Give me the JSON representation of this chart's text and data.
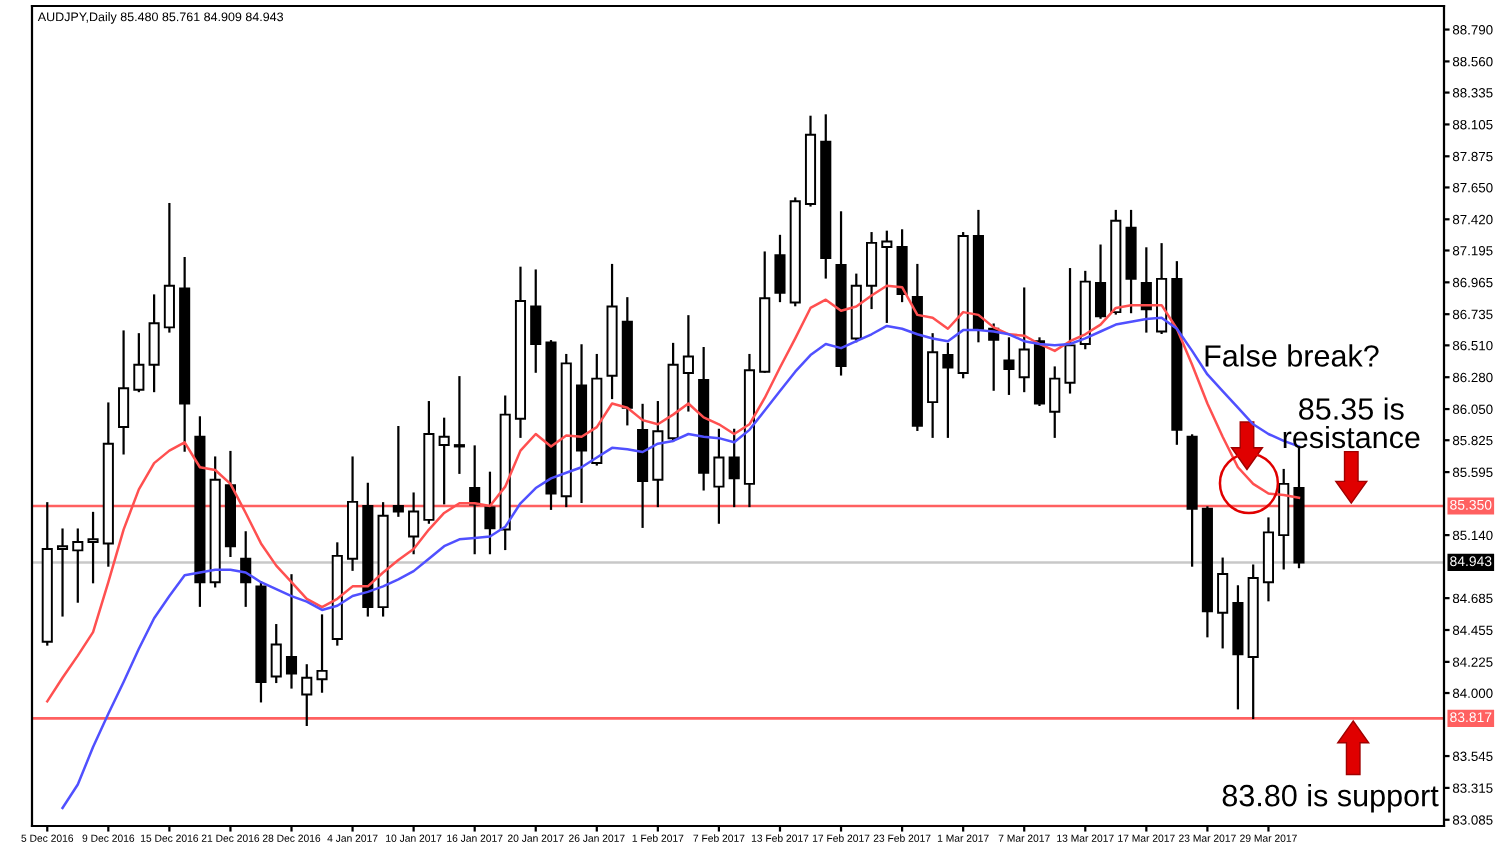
{
  "chart_data": {
    "type": "candlestick",
    "categories": [
      "5 Dec 2016",
      null,
      null,
      null,
      "9 Dec 2016",
      null,
      null,
      null,
      "15 Dec 2016",
      null,
      null,
      null,
      "21 Dec 2016",
      null,
      null,
      null,
      "28 Dec 2016",
      null,
      null,
      null,
      "4 Jan 2017",
      null,
      null,
      null,
      "10 Jan 2017",
      null,
      null,
      null,
      "16 Jan 2017",
      null,
      null,
      null,
      "20 Jan 2017",
      null,
      null,
      null,
      "26 Jan 2017",
      null,
      null,
      null,
      "1 Feb 2017",
      null,
      null,
      null,
      "7 Feb 2017",
      null,
      null,
      null,
      "13 Feb 2017",
      null,
      null,
      null,
      "17 Feb 2017",
      null,
      null,
      null,
      "23 Feb 2017",
      null,
      null,
      null,
      "1 Mar 2017",
      null,
      null,
      null,
      "7 Mar 2017",
      null,
      null,
      null,
      "13 Mar 2017",
      null,
      null,
      null,
      "17 Mar 2017",
      null,
      null,
      null,
      "23 Mar 2017",
      null,
      null,
      null,
      "29 Mar 2017",
      null,
      null
    ],
    "ohlc": [
      [
        84.37,
        85.37,
        84.35,
        85.04
      ],
      [
        85.04,
        85.18,
        84.56,
        85.06
      ],
      [
        85.03,
        85.18,
        84.66,
        85.09
      ],
      [
        85.09,
        85.3,
        84.8,
        85.11
      ],
      [
        85.08,
        86.09,
        84.92,
        85.8
      ],
      [
        85.92,
        86.61,
        85.73,
        86.2
      ],
      [
        86.19,
        86.59,
        86.18,
        86.37
      ],
      [
        86.37,
        86.87,
        86.18,
        86.67
      ],
      [
        86.64,
        87.53,
        86.61,
        86.94
      ],
      [
        86.92,
        87.14,
        85.75,
        86.09
      ],
      [
        85.85,
        85.99,
        84.63,
        84.8
      ],
      [
        84.8,
        85.7,
        84.77,
        85.54
      ],
      [
        85.5,
        85.74,
        84.99,
        85.06
      ],
      [
        84.97,
        85.16,
        84.63,
        84.8
      ],
      [
        84.77,
        84.8,
        83.94,
        84.08
      ],
      [
        84.12,
        84.49,
        84.08,
        84.35
      ],
      [
        84.26,
        84.85,
        84.04,
        84.14
      ],
      [
        83.99,
        84.2,
        83.77,
        84.11
      ],
      [
        84.1,
        84.56,
        84.01,
        84.16
      ],
      [
        84.39,
        85.08,
        84.35,
        84.99
      ],
      [
        84.97,
        85.7,
        84.89,
        85.38
      ],
      [
        85.35,
        85.51,
        84.56,
        84.62
      ],
      [
        84.62,
        85.37,
        84.56,
        85.28
      ],
      [
        85.35,
        85.92,
        85.28,
        85.31
      ],
      [
        85.13,
        85.44,
        85.01,
        85.31
      ],
      [
        85.25,
        86.1,
        85.23,
        85.87
      ],
      [
        85.79,
        85.98,
        85.37,
        85.85
      ],
      [
        85.79,
        86.28,
        85.59,
        85.78
      ],
      [
        85.48,
        85.78,
        85.01,
        85.36
      ],
      [
        85.34,
        85.59,
        85.01,
        85.19
      ],
      [
        85.18,
        86.14,
        85.04,
        86.01
      ],
      [
        85.98,
        87.07,
        85.85,
        86.83
      ],
      [
        86.79,
        87.05,
        86.32,
        86.52
      ],
      [
        86.53,
        86.54,
        85.33,
        85.44
      ],
      [
        85.42,
        86.44,
        85.35,
        86.38
      ],
      [
        86.22,
        86.51,
        85.38,
        85.75
      ],
      [
        85.66,
        86.44,
        85.65,
        86.27
      ],
      [
        86.29,
        87.09,
        86.13,
        86.79
      ],
      [
        86.68,
        86.85,
        85.94,
        86.06
      ],
      [
        85.9,
        86.08,
        85.2,
        85.53
      ],
      [
        85.54,
        86.1,
        85.35,
        85.89
      ],
      [
        85.84,
        86.52,
        85.82,
        86.37
      ],
      [
        86.31,
        86.72,
        86.04,
        86.43
      ],
      [
        86.26,
        86.49,
        85.47,
        85.59
      ],
      [
        85.49,
        85.9,
        85.23,
        85.7
      ],
      [
        85.7,
        85.9,
        85.35,
        85.55
      ],
      [
        85.51,
        86.44,
        85.35,
        86.33
      ],
      [
        86.32,
        87.18,
        86.32,
        86.85
      ],
      [
        87.16,
        87.3,
        86.83,
        86.89
      ],
      [
        86.82,
        87.57,
        86.8,
        87.55
      ],
      [
        87.53,
        88.16,
        87.52,
        88.03
      ],
      [
        87.98,
        88.17,
        87.0,
        87.14
      ],
      [
        87.09,
        87.47,
        86.3,
        86.36
      ],
      [
        86.56,
        87.02,
        86.54,
        86.94
      ],
      [
        86.94,
        87.32,
        86.78,
        87.25
      ],
      [
        87.22,
        87.33,
        86.68,
        87.26
      ],
      [
        87.22,
        87.34,
        86.83,
        86.88
      ],
      [
        86.86,
        87.09,
        85.9,
        85.93
      ],
      [
        86.1,
        86.59,
        85.85,
        86.46
      ],
      [
        86.44,
        86.52,
        85.85,
        86.35
      ],
      [
        86.31,
        87.32,
        86.28,
        87.3
      ],
      [
        87.3,
        87.48,
        86.54,
        86.63
      ],
      [
        86.63,
        86.66,
        86.19,
        86.55
      ],
      [
        86.4,
        86.56,
        86.16,
        86.34
      ],
      [
        86.28,
        86.92,
        86.18,
        86.48
      ],
      [
        86.54,
        86.56,
        86.08,
        86.09
      ],
      [
        86.03,
        86.35,
        85.85,
        86.27
      ],
      [
        86.24,
        87.06,
        86.17,
        86.51
      ],
      [
        86.52,
        87.04,
        86.49,
        86.97
      ],
      [
        86.96,
        87.23,
        86.71,
        86.72
      ],
      [
        86.75,
        87.48,
        86.74,
        87.41
      ],
      [
        87.36,
        87.48,
        86.75,
        86.99
      ],
      [
        86.96,
        87.21,
        86.61,
        86.77
      ],
      [
        86.61,
        87.24,
        86.6,
        86.99
      ],
      [
        86.99,
        87.11,
        85.8,
        85.9
      ],
      [
        85.85,
        85.86,
        84.92,
        85.33
      ],
      [
        85.33,
        85.34,
        84.41,
        84.59
      ],
      [
        84.58,
        84.97,
        84.33,
        84.86
      ],
      [
        84.65,
        84.77,
        83.89,
        84.28
      ],
      [
        84.26,
        84.92,
        83.82,
        84.83
      ],
      [
        84.8,
        85.26,
        84.67,
        85.16
      ],
      [
        85.14,
        85.61,
        84.9,
        85.51
      ],
      [
        85.48,
        85.761,
        84.909,
        84.943
      ]
    ],
    "series": [
      {
        "type": "line",
        "color": "#ff5050",
        "values": [
          83.94,
          84.11,
          84.27,
          84.44,
          84.8,
          85.18,
          85.47,
          85.66,
          85.75,
          85.81,
          85.63,
          85.61,
          85.51,
          85.3,
          85.08,
          84.92,
          84.8,
          84.68,
          84.62,
          84.68,
          84.77,
          84.77,
          84.87,
          84.96,
          85.04,
          85.18,
          85.3,
          85.37,
          85.37,
          85.35,
          85.49,
          85.75,
          85.87,
          85.78,
          85.86,
          85.85,
          85.92,
          86.09,
          86.06,
          85.97,
          85.94,
          86.01,
          86.09,
          85.99,
          85.94,
          85.87,
          85.94,
          86.13,
          86.35,
          86.56,
          86.78,
          86.84,
          86.76,
          86.79,
          86.87,
          86.94,
          86.93,
          86.73,
          86.71,
          86.63,
          86.75,
          86.73,
          86.64,
          86.59,
          86.58,
          86.52,
          86.47,
          86.54,
          86.59,
          86.66,
          86.78,
          86.8,
          86.8,
          86.8,
          86.63,
          86.37,
          86.09,
          85.85,
          85.63,
          85.51,
          85.44,
          85.43,
          85.41
        ]
      },
      {
        "type": "line",
        "color": "#5050ff",
        "values": [
          null,
          83.17,
          83.34,
          83.61,
          83.85,
          84.08,
          84.32,
          84.54,
          84.7,
          84.85,
          84.87,
          84.89,
          84.89,
          84.87,
          84.8,
          84.75,
          84.7,
          84.66,
          84.6,
          84.63,
          84.7,
          84.73,
          84.77,
          84.82,
          84.88,
          84.97,
          85.06,
          85.11,
          85.12,
          85.13,
          85.2,
          85.37,
          85.48,
          85.55,
          85.59,
          85.63,
          85.7,
          85.77,
          85.76,
          85.74,
          85.8,
          85.82,
          85.87,
          85.85,
          85.84,
          85.81,
          85.9,
          86.04,
          86.18,
          86.32,
          86.44,
          86.52,
          86.49,
          86.54,
          86.59,
          86.65,
          86.63,
          86.59,
          86.56,
          86.54,
          86.62,
          86.62,
          86.61,
          86.59,
          86.54,
          86.52,
          86.51,
          86.52,
          86.56,
          86.61,
          86.66,
          86.68,
          86.7,
          86.71,
          86.63,
          86.47,
          86.3,
          86.18,
          86.06,
          85.94,
          85.87,
          85.82,
          85.78
        ]
      }
    ],
    "ylim": [
      83.04,
      88.96
    ],
    "yticks": [
      {
        "value": 88.79,
        "label": "88.790"
      },
      {
        "value": 88.56,
        "label": "88.560"
      },
      {
        "value": 88.335,
        "label": "88.335"
      },
      {
        "value": 88.105,
        "label": "88.105"
      },
      {
        "value": 87.875,
        "label": "87.875"
      },
      {
        "value": 87.65,
        "label": "87.650"
      },
      {
        "value": 87.42,
        "label": "87.420"
      },
      {
        "value": 87.195,
        "label": "87.195"
      },
      {
        "value": 86.965,
        "label": "86.965"
      },
      {
        "value": 86.735,
        "label": "86.735"
      },
      {
        "value": 86.51,
        "label": "86.510"
      },
      {
        "value": 86.28,
        "label": "86.280"
      },
      {
        "value": 86.05,
        "label": "86.050"
      },
      {
        "value": 85.825,
        "label": "85.825"
      },
      {
        "value": 85.595,
        "label": "85.595"
      },
      {
        "value": 85.14,
        "label": "85.140"
      },
      {
        "value": 84.685,
        "label": "84.685"
      },
      {
        "value": 84.455,
        "label": "84.455"
      },
      {
        "value": 84.225,
        "label": "84.225"
      },
      {
        "value": 84.0,
        "label": "84.000"
      },
      {
        "value": 83.545,
        "label": "83.545"
      },
      {
        "value": 83.315,
        "label": "83.315"
      },
      {
        "value": 83.085,
        "label": "83.085"
      }
    ],
    "ref_lines": [
      {
        "axis": "y",
        "value": 85.35,
        "label": "85.350",
        "color": "#ff6060"
      },
      {
        "axis": "y",
        "value": 84.943,
        "label": "84.943",
        "color": "#c8c8c8"
      },
      {
        "axis": "y",
        "value": 83.817,
        "label": "83.817",
        "color": "#ff6060"
      }
    ],
    "annotations": [
      "AUDJPY,Daily 85.480 85.761 84.909 84.943",
      "False break?",
      "85.35 is\nresistance",
      "83.80 is support"
    ],
    "grid": false,
    "legend": false
  }
}
